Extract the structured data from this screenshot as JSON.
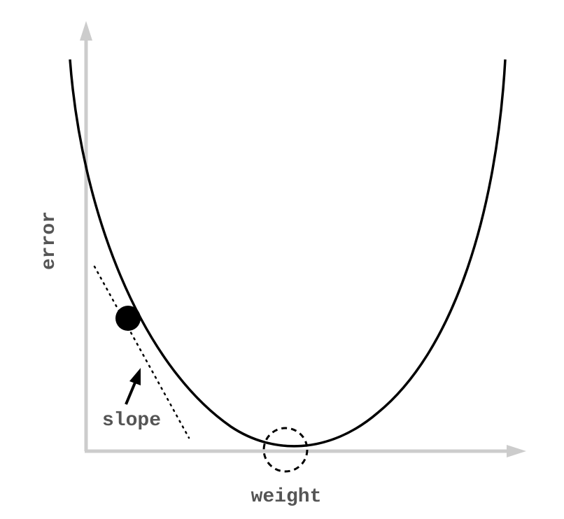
{
  "labels": {
    "y_axis": "error",
    "x_axis": "weight",
    "slope": "slope"
  },
  "colors": {
    "axis": "#cccccc",
    "curve": "#000000",
    "label": "#555555"
  }
}
